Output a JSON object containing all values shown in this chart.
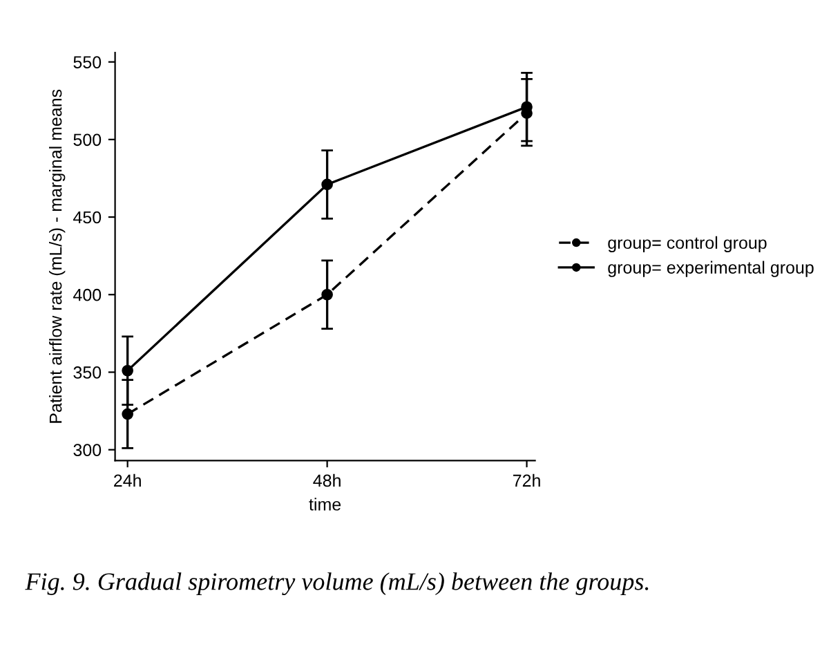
{
  "chart_data": {
    "type": "line",
    "xlabel": "time",
    "ylabel": "Patient airflow rate (mL/s) - marginal means",
    "x": [
      24,
      48,
      72
    ],
    "series": [
      {
        "name": "group= control group",
        "color": "#000000",
        "line_style": "dashed",
        "values": [
          323,
          400,
          517
        ],
        "errors": [
          [
            301,
            345
          ],
          [
            378,
            422
          ],
          [
            499,
            539
          ]
        ]
      },
      {
        "name": "group= experimental group",
        "color": "#000000",
        "line_style": "solid",
        "values": [
          351,
          471,
          521
        ],
        "errors": [
          [
            329,
            373
          ],
          [
            449,
            493
          ],
          [
            496,
            543
          ]
        ]
      }
    ],
    "marker": "circle",
    "xlim": [
      22.5,
      73
    ],
    "xticks": [
      {
        "value": 24,
        "label": "24h"
      },
      {
        "value": 48,
        "label": "48h"
      },
      {
        "value": 72,
        "label": "72h"
      }
    ],
    "ylim": [
      293,
      556
    ],
    "yticks": [
      300,
      350,
      400,
      450,
      500,
      550
    ],
    "grid": false,
    "legend": "right",
    "annotations": [
      "Fig. 9. Gradual spirometry volume (mL/s) between the groups."
    ]
  }
}
